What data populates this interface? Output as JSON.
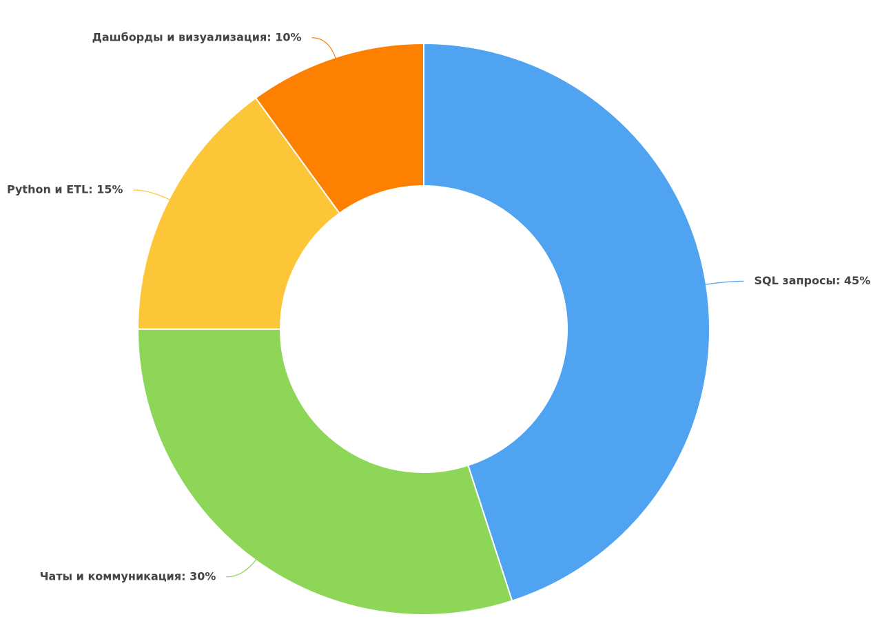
{
  "chart_data": {
    "type": "donut",
    "values": [
      45,
      30,
      15,
      10
    ],
    "value_labels": [
      "SQL запросы: 45%",
      "Чаты и коммуникация: 30%",
      "Python и ETL: 15%",
      "Дашборды и визуализация: 10%"
    ],
    "colors": [
      "#4fa3f0",
      "#8dd658",
      "#fdc538",
      "#fe8000"
    ]
  }
}
